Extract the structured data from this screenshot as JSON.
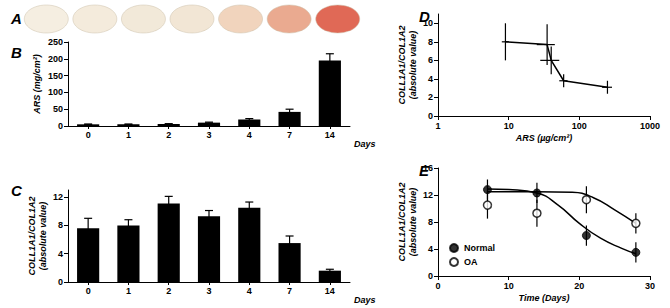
{
  "chart_data": [
    {
      "type": "swatch",
      "title": "A",
      "colors": [
        "#f3ead9",
        "#f1e6d3",
        "#efe3cf",
        "#efe0cb",
        "#edc9ad",
        "#e59574",
        "#d8432c"
      ],
      "tick_labels": false
    },
    {
      "type": "bar",
      "title": "B",
      "categories": [
        "0",
        "1",
        "2",
        "3",
        "4",
        "7",
        "14"
      ],
      "values": [
        5,
        5,
        6,
        10,
        19,
        42,
        195
      ],
      "errors": [
        1,
        1,
        1,
        1.5,
        3,
        8,
        20
      ],
      "x_label": "Days",
      "y_label": "ARS (mg/cm²)",
      "ylim": [
        0,
        250
      ],
      "yticks": [
        0,
        50,
        100,
        150,
        200,
        250
      ],
      "color": "#000000",
      "grid": false
    },
    {
      "type": "bar",
      "title": "C",
      "categories": [
        "0",
        "1",
        "2",
        "3",
        "4",
        "7",
        "14"
      ],
      "values": [
        7.6,
        8.0,
        11.1,
        9.3,
        10.5,
        5.5,
        1.6
      ],
      "errors": [
        1.4,
        0.8,
        1.0,
        0.8,
        0.8,
        1.0,
        0.2
      ],
      "x_label": "Days",
      "y_label": "COLL1A1/COL1A2\n(absolute value)",
      "ylim": [
        0,
        13
      ],
      "yticks": [
        0,
        4,
        8,
        12
      ],
      "color": "#000000",
      "grid": false
    },
    {
      "type": "line",
      "title": "D",
      "x": [
        9,
        35,
        40,
        60,
        250
      ],
      "values": [
        8.0,
        7.7,
        6.0,
        3.8,
        3.1
      ],
      "errors": [
        2.0,
        2.2,
        1.5,
        0.7,
        0.7
      ],
      "x_errors": [
        1,
        10,
        12,
        8,
        40
      ],
      "x_label": "ARS (µg/cm²)",
      "y_label": "COLL1A1/COL1A2\n(absolute value)",
      "log": "x",
      "xlim": [
        1,
        1000
      ],
      "xticks": [
        1,
        10,
        100,
        1000
      ],
      "ylim": [
        0,
        11
      ],
      "yticks": [
        0,
        2,
        4,
        6,
        8,
        10
      ],
      "color": "#000000",
      "marker": "none",
      "grid": false
    },
    {
      "type": "scatter",
      "title": "E",
      "x_label": "Time (Days)",
      "y_label": "COLL1A1/COL1A2\n(absolute value)",
      "xlim": [
        0,
        30
      ],
      "xticks": [
        0,
        10,
        20,
        30
      ],
      "ylim": [
        0,
        16
      ],
      "yticks": [
        0,
        4,
        8,
        12,
        16
      ],
      "legend": "lower left",
      "grid": false,
      "series": [
        {
          "name": "Normal",
          "color": "#000000",
          "marker": "filled",
          "x": [
            7,
            14,
            21,
            28
          ],
          "values": [
            12.8,
            12.3,
            6.0,
            3.5
          ],
          "errors": [
            1.5,
            1.5,
            1.5,
            1.5
          ],
          "curve": {
            "x": [
              7,
              10,
              14,
              17,
              20,
              23,
              26,
              28
            ],
            "values": [
              12.9,
              12.8,
              12.3,
              10.5,
              7.8,
              5.6,
              4.1,
              3.3
            ]
          }
        },
        {
          "name": "OA",
          "color": "#000000",
          "marker": "open",
          "x": [
            7,
            14,
            21,
            28
          ],
          "values": [
            10.5,
            9.3,
            11.3,
            7.8
          ],
          "errors": [
            2.0,
            2.0,
            2.0,
            1.5
          ],
          "curve": {
            "x": [
              7,
              14,
              19,
              22,
              25,
              28
            ],
            "values": [
              12.5,
              12.5,
              12.4,
              11.6,
              9.8,
              7.8
            ]
          }
        }
      ]
    }
  ]
}
